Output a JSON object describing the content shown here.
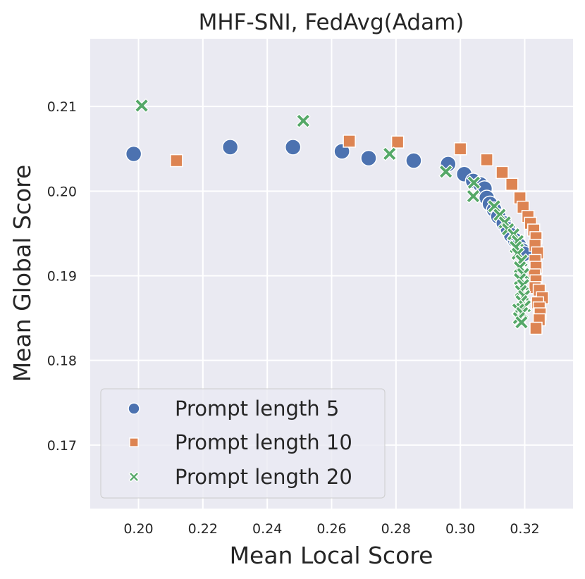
{
  "chart_data": {
    "type": "scatter",
    "title": "MHF-SNI, FedAvg(Adam)",
    "xlabel": "Mean Local Score",
    "ylabel": "Mean Global Score",
    "xlim": [
      0.185,
      0.335
    ],
    "ylim": [
      0.1625,
      0.218
    ],
    "xticks": [
      "0.20",
      "0.22",
      "0.24",
      "0.26",
      "0.28",
      "0.30",
      "0.32"
    ],
    "xtick_values": [
      0.2,
      0.22,
      0.24,
      0.26,
      0.28,
      0.3,
      0.32
    ],
    "yticks": [
      "0.17",
      "0.18",
      "0.19",
      "0.20",
      "0.21"
    ],
    "ytick_values": [
      0.17,
      0.18,
      0.19,
      0.2,
      0.21
    ],
    "grid": true,
    "legend_position": "lower-left",
    "series": [
      {
        "name": "Prompt length 5",
        "marker": "circle",
        "color": "#4c72b0",
        "points": [
          [
            0.1985,
            0.2044
          ],
          [
            0.2285,
            0.2052
          ],
          [
            0.248,
            0.2052
          ],
          [
            0.2632,
            0.2047
          ],
          [
            0.2715,
            0.2039
          ],
          [
            0.2855,
            0.2036
          ],
          [
            0.2962,
            0.2032
          ],
          [
            0.3012,
            0.202
          ],
          [
            0.304,
            0.2012
          ],
          [
            0.3062,
            0.2008
          ],
          [
            0.3075,
            0.2003
          ],
          [
            0.3082,
            0.1992
          ],
          [
            0.3092,
            0.1985
          ],
          [
            0.3105,
            0.1978
          ],
          [
            0.3118,
            0.197
          ],
          [
            0.3135,
            0.1962
          ],
          [
            0.3148,
            0.1955
          ],
          [
            0.3158,
            0.1948
          ],
          [
            0.317,
            0.1942
          ],
          [
            0.3182,
            0.1936
          ],
          [
            0.3192,
            0.193
          ],
          [
            0.3198,
            0.1926
          ]
        ]
      },
      {
        "name": "Prompt length 10",
        "marker": "square",
        "color": "#dd8452",
        "points": [
          [
            0.2118,
            0.2036
          ],
          [
            0.2655,
            0.2059
          ],
          [
            0.2805,
            0.2058
          ],
          [
            0.3,
            0.205
          ],
          [
            0.3082,
            0.2037
          ],
          [
            0.313,
            0.2022
          ],
          [
            0.316,
            0.2008
          ],
          [
            0.3185,
            0.1992
          ],
          [
            0.3195,
            0.1981
          ],
          [
            0.321,
            0.197
          ],
          [
            0.3218,
            0.1962
          ],
          [
            0.3228,
            0.1954
          ],
          [
            0.3235,
            0.1945
          ],
          [
            0.3232,
            0.1936
          ],
          [
            0.324,
            0.1927
          ],
          [
            0.3232,
            0.1918
          ],
          [
            0.3235,
            0.191
          ],
          [
            0.323,
            0.1901
          ],
          [
            0.3235,
            0.1894
          ],
          [
            0.3232,
            0.1886
          ],
          [
            0.3245,
            0.1883
          ],
          [
            0.3255,
            0.1874
          ],
          [
            0.324,
            0.1868
          ],
          [
            0.3245,
            0.1862
          ],
          [
            0.3248,
            0.1855
          ],
          [
            0.3245,
            0.1848
          ],
          [
            0.3235,
            0.1838
          ]
        ]
      },
      {
        "name": "Prompt length 20",
        "marker": "x",
        "color": "#55a868",
        "points": [
          [
            0.201,
            0.2101
          ],
          [
            0.2512,
            0.2083
          ],
          [
            0.278,
            0.2044
          ],
          [
            0.2955,
            0.2023
          ],
          [
            0.3042,
            0.201
          ],
          [
            0.304,
            0.1994
          ],
          [
            0.3105,
            0.1982
          ],
          [
            0.3122,
            0.1972
          ],
          [
            0.3138,
            0.1963
          ],
          [
            0.3148,
            0.1955
          ],
          [
            0.3165,
            0.1949
          ],
          [
            0.3178,
            0.1941
          ],
          [
            0.3172,
            0.1934
          ],
          [
            0.3178,
            0.1926
          ],
          [
            0.319,
            0.1918
          ],
          [
            0.3185,
            0.191
          ],
          [
            0.3195,
            0.1902
          ],
          [
            0.3185,
            0.1896
          ],
          [
            0.3195,
            0.1889
          ],
          [
            0.3188,
            0.1882
          ],
          [
            0.3198,
            0.1876
          ],
          [
            0.319,
            0.187
          ],
          [
            0.32,
            0.1864
          ],
          [
            0.318,
            0.186
          ],
          [
            0.3192,
            0.1856
          ],
          [
            0.3182,
            0.185
          ],
          [
            0.319,
            0.1845
          ]
        ]
      }
    ]
  }
}
